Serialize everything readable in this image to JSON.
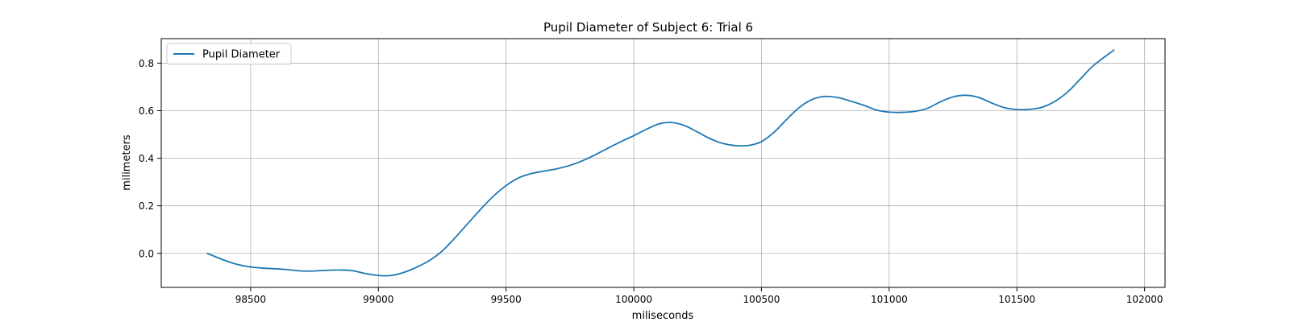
{
  "chart_data": {
    "type": "line",
    "title": "Pupil Diameter of Subject 6: Trial 6",
    "xlabel": "miliseconds",
    "ylabel": "milimeters",
    "xlim": [
      98150,
      102080
    ],
    "ylim": [
      -0.143,
      0.903
    ],
    "xticks": [
      98500,
      99000,
      99500,
      100000,
      100500,
      101000,
      101500,
      102000
    ],
    "yticks": [
      0.0,
      0.2,
      0.4,
      0.6,
      0.8
    ],
    "xtick_labels": [
      "98500",
      "99000",
      "99500",
      "100000",
      "100500",
      "101000",
      "101500",
      "102000"
    ],
    "ytick_labels": [
      "0.0",
      "0.2",
      "0.4",
      "0.6",
      "0.8"
    ],
    "grid": true,
    "legend": {
      "location": "upper-left",
      "entries": [
        "Pupil Diameter"
      ]
    },
    "series": [
      {
        "name": "Pupil Diameter",
        "color": "#1f77b4",
        "x": [
          98330,
          98400,
          98450,
          98500,
          98550,
          98600,
          98650,
          98700,
          98750,
          98800,
          98850,
          98900,
          98950,
          99000,
          99050,
          99100,
          99150,
          99200,
          99250,
          99300,
          99350,
          99400,
          99450,
          99500,
          99550,
          99600,
          99650,
          99700,
          99750,
          99800,
          99850,
          99900,
          99950,
          100000,
          100050,
          100100,
          100150,
          100200,
          100250,
          100300,
          100350,
          100400,
          100450,
          100500,
          100550,
          100600,
          100650,
          100700,
          100750,
          100800,
          100850,
          100900,
          100950,
          101000,
          101050,
          101100,
          101150,
          101200,
          101250,
          101300,
          101350,
          101400,
          101450,
          101500,
          101550,
          101600,
          101650,
          101700,
          101750,
          101800,
          101880
        ],
        "y": [
          0.0,
          -0.03,
          -0.047,
          -0.057,
          -0.062,
          -0.065,
          -0.069,
          -0.074,
          -0.074,
          -0.071,
          -0.07,
          -0.073,
          -0.085,
          -0.093,
          -0.093,
          -0.08,
          -0.058,
          -0.03,
          0.01,
          0.065,
          0.125,
          0.185,
          0.24,
          0.285,
          0.318,
          0.336,
          0.346,
          0.356,
          0.37,
          0.39,
          0.415,
          0.443,
          0.47,
          0.495,
          0.522,
          0.545,
          0.55,
          0.537,
          0.51,
          0.482,
          0.462,
          0.453,
          0.454,
          0.47,
          0.51,
          0.565,
          0.615,
          0.648,
          0.66,
          0.655,
          0.64,
          0.623,
          0.603,
          0.594,
          0.593,
          0.597,
          0.61,
          0.637,
          0.658,
          0.665,
          0.656,
          0.633,
          0.613,
          0.605,
          0.606,
          0.615,
          0.64,
          0.68,
          0.735,
          0.79,
          0.855
        ]
      }
    ]
  }
}
